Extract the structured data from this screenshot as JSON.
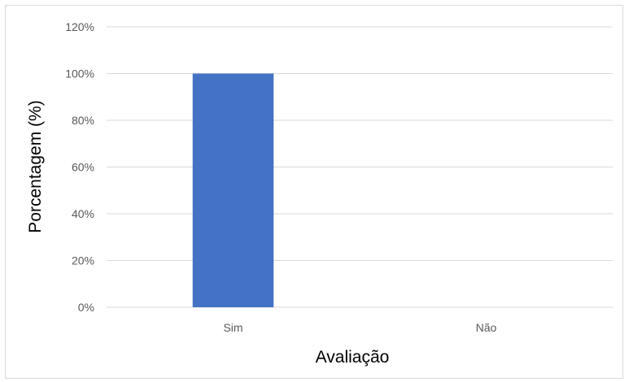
{
  "chart_data": {
    "type": "bar",
    "categories": [
      "Sim",
      "Não"
    ],
    "values": [
      100,
      0
    ],
    "xlabel": "Avaliação",
    "ylabel": "Porcentagem (%)",
    "ylim": [
      0,
      120
    ],
    "yticks": [
      0,
      20,
      40,
      60,
      80,
      100,
      120
    ],
    "ytick_labels": [
      "0%",
      "20%",
      "40%",
      "60%",
      "80%",
      "100%",
      "120%"
    ],
    "grid": true,
    "legend": "none",
    "bar_color": "#4472c4",
    "grid_color": "#d9d9d9"
  }
}
